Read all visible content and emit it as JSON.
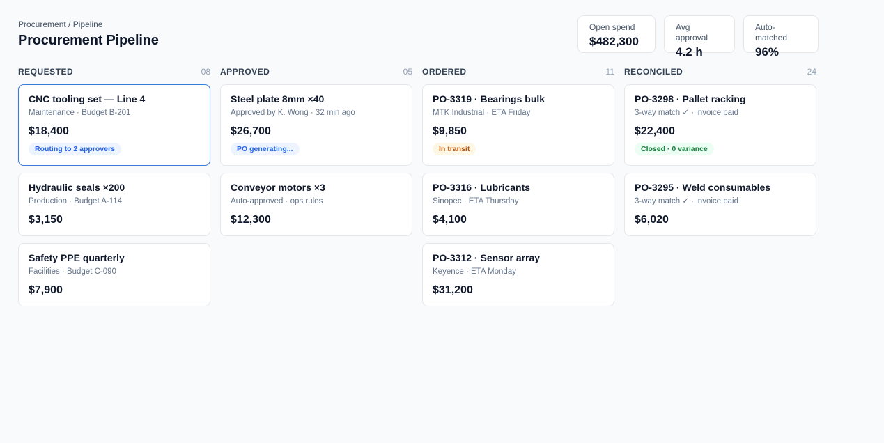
{
  "breadcrumb": {
    "parent": "Procurement",
    "separator": " / ",
    "current": "Pipeline"
  },
  "page_title": "Procurement Pipeline",
  "stats": [
    {
      "label": "Open spend",
      "value": "$482,300"
    },
    {
      "label": "Avg approval",
      "value": "4.2 h"
    },
    {
      "label": "Auto-matched",
      "value": "96%"
    }
  ],
  "columns": [
    {
      "title": "REQUESTED",
      "count": "08",
      "cards": [
        {
          "title": "CNC tooling set — Line 4",
          "meta": "Maintenance · Budget B-201",
          "amount": "$18,400",
          "badge": "Routing to 2 approvers",
          "badge_color": "#2563eb"
        },
        {
          "title": "Hydraulic seals ×200",
          "meta": "Production · Budget A-114",
          "amount": "$3,150"
        },
        {
          "title": "Safety PPE quarterly",
          "meta": "Facilities · Budget C-090",
          "amount": "$7,900"
        }
      ]
    },
    {
      "title": "APPROVED",
      "count": "05",
      "cards": [
        {
          "title": "Steel plate 8mm ×40",
          "meta": "Approved by K. Wong · 32 min ago",
          "amount": "$26,700",
          "badge": "PO generating...",
          "badge_color": "#2563eb"
        },
        {
          "title": "Conveyor motors ×3",
          "meta": "Auto-approved · ops rules",
          "amount": "$12,300"
        }
      ]
    },
    {
      "title": "ORDERED",
      "count": "11",
      "cards": [
        {
          "title": "PO-3319 · Bearings bulk",
          "meta": "MTK Industrial · ETA Friday",
          "amount": "$9,850",
          "badge": "In transit",
          "badge_color": "#b45309"
        },
        {
          "title": "PO-3316 · Lubricants",
          "meta": "Sinopec · ETA Thursday",
          "amount": "$4,100"
        },
        {
          "title": "PO-3312 · Sensor array",
          "meta": "Keyence · ETA Monday",
          "amount": "$31,200"
        }
      ]
    },
    {
      "title": "RECONCILED",
      "count": "24",
      "cards": [
        {
          "title": "PO-3298 · Pallet racking",
          "meta": "3-way match ✓ · invoice paid",
          "amount": "$22,400",
          "badge": "Closed · 0 variance",
          "badge_color": "#15803d"
        },
        {
          "title": "PO-3295 · Weld consumables",
          "meta": "3-way match ✓ · invoice paid",
          "amount": "$6,020"
        }
      ]
    }
  ]
}
